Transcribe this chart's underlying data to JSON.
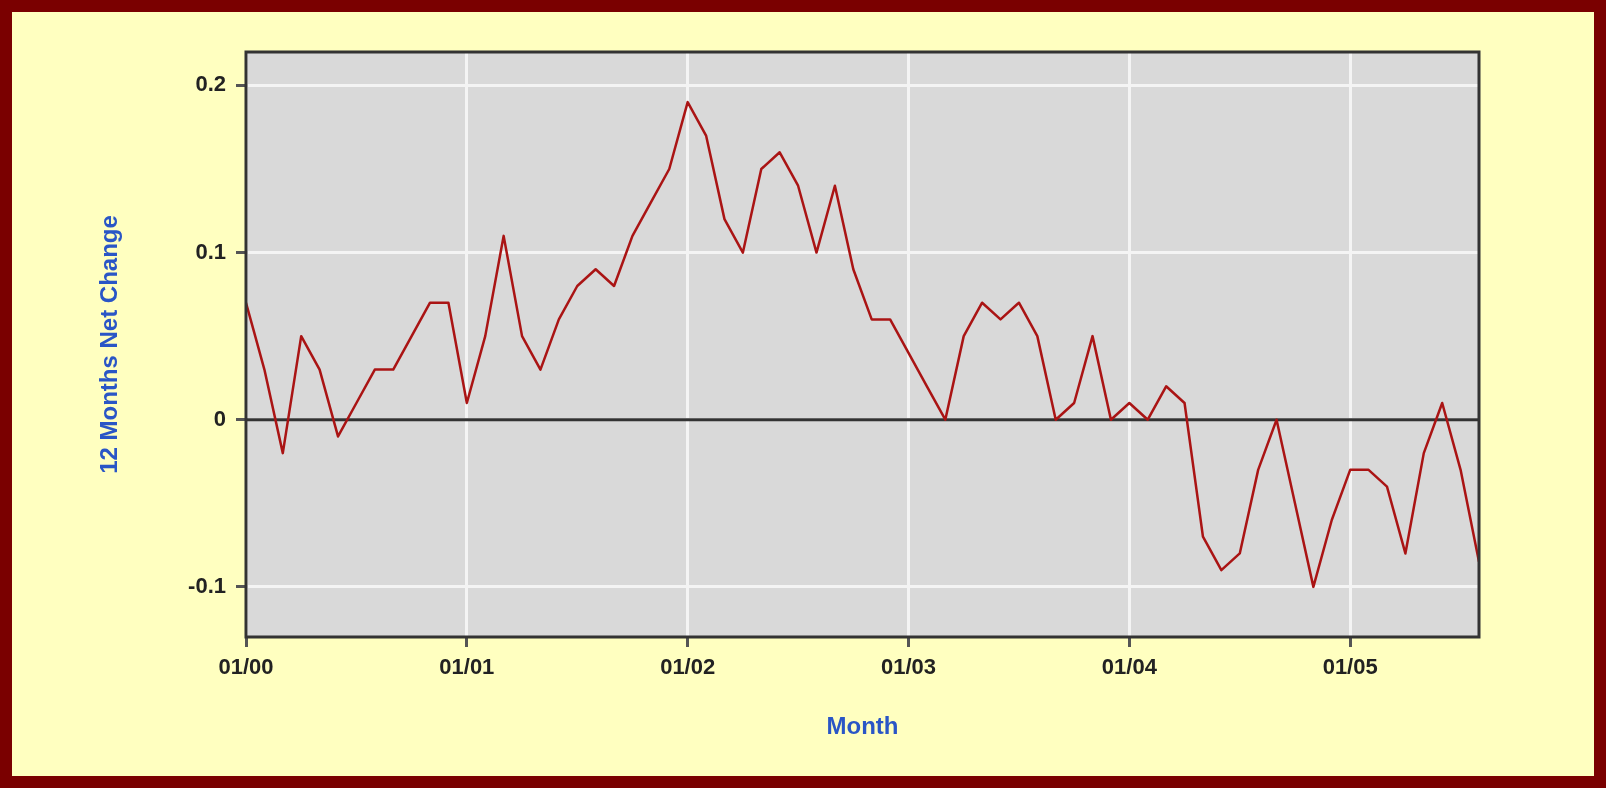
{
  "chart_data": {
    "type": "line",
    "xlabel": "Month",
    "ylabel": "12 Months Net Change",
    "xlim": [
      "2000-01",
      "2005-08"
    ],
    "xticks": [
      {
        "value": "2000-01",
        "label": "01/00"
      },
      {
        "value": "2001-01",
        "label": "01/01"
      },
      {
        "value": "2002-01",
        "label": "01/02"
      },
      {
        "value": "2003-01",
        "label": "01/03"
      },
      {
        "value": "2004-01",
        "label": "01/04"
      },
      {
        "value": "2005-01",
        "label": "01/05"
      }
    ],
    "ylim": [
      -0.13,
      0.22
    ],
    "yticks": [
      -0.1,
      0,
      0.1,
      0.2
    ],
    "grid": true,
    "legend": false,
    "marker": "none",
    "line_style": "solid",
    "ref_lines": [
      {
        "axis": "y",
        "value": 0,
        "color": "#333333"
      }
    ],
    "series": [
      {
        "color": "#aa1414",
        "x": [
          "2000-01",
          "2000-02",
          "2000-03",
          "2000-04",
          "2000-05",
          "2000-06",
          "2000-07",
          "2000-08",
          "2000-09",
          "2000-10",
          "2000-11",
          "2000-12",
          "2001-01",
          "2001-02",
          "2001-03",
          "2001-04",
          "2001-05",
          "2001-06",
          "2001-07",
          "2001-08",
          "2001-09",
          "2001-10",
          "2001-11",
          "2001-12",
          "2002-01",
          "2002-02",
          "2002-03",
          "2002-04",
          "2002-05",
          "2002-06",
          "2002-07",
          "2002-08",
          "2002-09",
          "2002-10",
          "2002-11",
          "2002-12",
          "2003-01",
          "2003-02",
          "2003-03",
          "2003-04",
          "2003-05",
          "2003-06",
          "2003-07",
          "2003-08",
          "2003-09",
          "2003-10",
          "2003-11",
          "2003-12",
          "2004-01",
          "2004-02",
          "2004-03",
          "2004-04",
          "2004-05",
          "2004-06",
          "2004-07",
          "2004-08",
          "2004-09",
          "2004-10",
          "2004-11",
          "2004-12",
          "2005-01",
          "2005-02",
          "2005-03",
          "2005-04",
          "2005-05",
          "2005-06",
          "2005-07",
          "2005-08"
        ],
        "values": [
          0.07,
          0.03,
          -0.02,
          0.05,
          0.03,
          -0.01,
          0.01,
          0.03,
          0.03,
          0.05,
          0.07,
          0.07,
          0.01,
          0.05,
          0.11,
          0.05,
          0.03,
          0.06,
          0.08,
          0.09,
          0.08,
          0.11,
          0.13,
          0.15,
          0.19,
          0.17,
          0.12,
          0.1,
          0.15,
          0.16,
          0.14,
          0.1,
          0.14,
          0.09,
          0.06,
          0.06,
          0.04,
          0.02,
          0,
          0.05,
          0.07,
          0.06,
          0.07,
          0.05,
          0,
          0.01,
          0.05,
          0,
          0.01,
          0,
          0.02,
          0.01,
          -0.07,
          -0.09,
          -0.08,
          -0.03,
          0,
          -0.05,
          -0.1,
          -0.06,
          -0.03,
          -0.03,
          -0.04,
          -0.08,
          -0.02,
          0.01,
          -0.03,
          -0.085
        ]
      }
    ]
  }
}
